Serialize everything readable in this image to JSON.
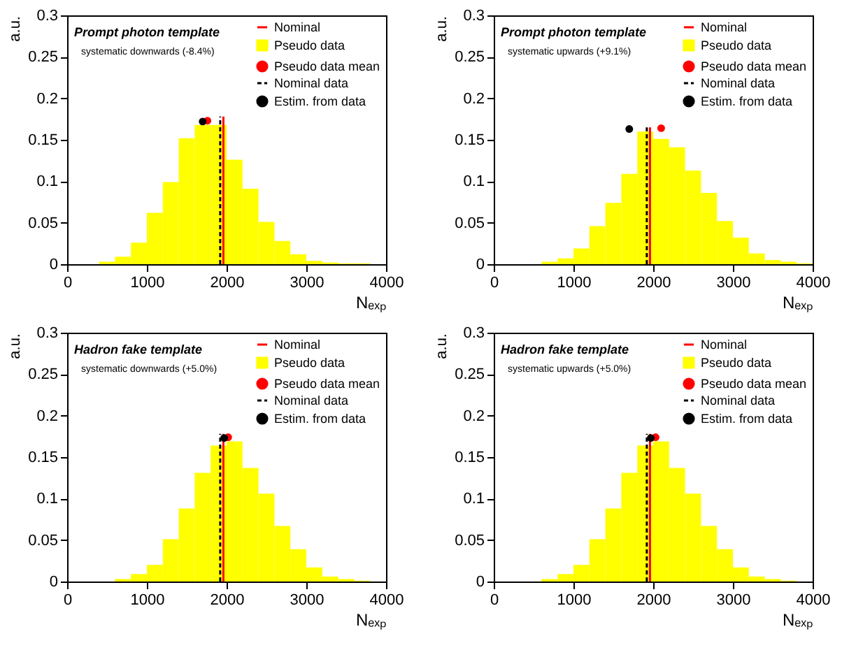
{
  "chart_data": [
    {
      "type": "histogram",
      "xlabel": "Nₑₓₚ",
      "ylabel": "a.u.",
      "xlim": [
        0,
        4000
      ],
      "ylim": [
        0,
        0.3
      ],
      "xticks": [
        0,
        1000,
        2000,
        3000,
        4000
      ],
      "yticks": [
        0,
        0.05,
        0.1,
        0.15,
        0.2,
        0.25,
        0.3
      ],
      "legend": "top right",
      "grid": false,
      "annotations": [
        "Prompt photon template",
        "systematic downwards (-8.4%)"
      ],
      "bins": [
        0,
        200,
        400,
        600,
        800,
        1000,
        1200,
        1400,
        1600,
        1800,
        2000,
        2200,
        2400,
        2600,
        2800,
        3000,
        3200,
        3400,
        3600,
        3800,
        4000
      ],
      "series": [
        {
          "name": "Nominal",
          "type": "line",
          "color": "#ff0000",
          "line_style": "solid",
          "x": [
            1960,
            1960
          ],
          "values": [
            0,
            0.178
          ]
        },
        {
          "name": "Pseudo data",
          "type": "histogram",
          "color": "#ffff00",
          "values": [
            0,
            0,
            0.003,
            0.009,
            0.026,
            0.062,
            0.099,
            0.152,
            0.168,
            0.168,
            0.126,
            0.091,
            0.051,
            0.028,
            0.012,
            0.004,
            0.002,
            0.001,
            0.001,
            0
          ]
        },
        {
          "name": "Pseudo data mean",
          "type": "scatter",
          "marker": "circle",
          "color": "#ff0000",
          "x": [
            1760
          ],
          "values": [
            0.173
          ]
        },
        {
          "name": "Nominal data",
          "type": "line",
          "color": "#000000",
          "line_style": "dashed",
          "x": [
            1920,
            1920
          ],
          "values": [
            0,
            0.178
          ]
        },
        {
          "name": "Estim. from data",
          "type": "scatter",
          "marker": "circle",
          "color": "#000000",
          "x": [
            1700
          ],
          "values": [
            0.172
          ]
        }
      ]
    },
    {
      "type": "histogram",
      "xlabel": "Nₑₓₚ",
      "ylabel": "a.u.",
      "xlim": [
        0,
        4000
      ],
      "ylim": [
        0,
        0.3
      ],
      "xticks": [
        0,
        1000,
        2000,
        3000,
        4000
      ],
      "yticks": [
        0,
        0.05,
        0.1,
        0.15,
        0.2,
        0.25,
        0.3
      ],
      "legend": "top right",
      "grid": false,
      "annotations": [
        "Prompt photon template",
        "systematic upwards (+9.1%)"
      ],
      "bins": [
        0,
        200,
        400,
        600,
        800,
        1000,
        1200,
        1400,
        1600,
        1800,
        2000,
        2200,
        2400,
        2600,
        2800,
        3000,
        3200,
        3400,
        3600,
        3800,
        4000
      ],
      "series": [
        {
          "name": "Nominal",
          "type": "line",
          "color": "#ff0000",
          "line_style": "solid",
          "x": [
            1960,
            1960
          ],
          "values": [
            0,
            0.165
          ]
        },
        {
          "name": "Pseudo data",
          "type": "histogram",
          "color": "#ffff00",
          "values": [
            0,
            0,
            0,
            0.003,
            0.007,
            0.019,
            0.046,
            0.074,
            0.109,
            0.16,
            0.151,
            0.141,
            0.113,
            0.086,
            0.052,
            0.032,
            0.013,
            0.005,
            0.003,
            0.001
          ]
        },
        {
          "name": "Pseudo data mean",
          "type": "scatter",
          "marker": "circle",
          "color": "#ff0000",
          "x": [
            2100
          ],
          "values": [
            0.164
          ]
        },
        {
          "name": "Nominal data",
          "type": "line",
          "color": "#000000",
          "line_style": "dashed",
          "x": [
            1920,
            1920
          ],
          "values": [
            0,
            0.165
          ]
        },
        {
          "name": "Estim. from data",
          "type": "scatter",
          "marker": "circle",
          "color": "#000000",
          "x": [
            1700
          ],
          "values": [
            0.163
          ]
        }
      ]
    },
    {
      "type": "histogram",
      "xlabel": "Nₑₓₚ",
      "ylabel": "a.u.",
      "xlim": [
        0,
        4000
      ],
      "ylim": [
        0,
        0.3
      ],
      "xticks": [
        0,
        1000,
        2000,
        3000,
        4000
      ],
      "yticks": [
        0,
        0.05,
        0.1,
        0.15,
        0.2,
        0.25,
        0.3
      ],
      "legend": "top right",
      "grid": false,
      "annotations": [
        "Hadron fake template",
        "systematic downwards (+5.0%)"
      ],
      "bins": [
        0,
        200,
        400,
        600,
        800,
        1000,
        1200,
        1400,
        1600,
        1800,
        2000,
        2200,
        2400,
        2600,
        2800,
        3000,
        3200,
        3400,
        3600,
        3800,
        4000
      ],
      "series": [
        {
          "name": "Nominal",
          "type": "line",
          "color": "#ff0000",
          "line_style": "solid",
          "x": [
            1960,
            1960
          ],
          "values": [
            0,
            0.178
          ]
        },
        {
          "name": "Pseudo data",
          "type": "histogram",
          "color": "#ffff00",
          "values": [
            0,
            0,
            0,
            0.003,
            0.009,
            0.02,
            0.051,
            0.088,
            0.131,
            0.164,
            0.169,
            0.137,
            0.106,
            0.067,
            0.039,
            0.017,
            0.006,
            0.003,
            0.001,
            0
          ]
        },
        {
          "name": "Pseudo data mean",
          "type": "scatter",
          "marker": "circle",
          "color": "#ff0000",
          "x": [
            2020
          ],
          "values": [
            0.174
          ]
        },
        {
          "name": "Nominal data",
          "type": "line",
          "color": "#000000",
          "line_style": "dashed",
          "x": [
            1920,
            1920
          ],
          "values": [
            0,
            0.178
          ]
        },
        {
          "name": "Estim. from data",
          "type": "scatter",
          "marker": "circle",
          "color": "#000000",
          "x": [
            1970
          ],
          "values": [
            0.173
          ]
        }
      ]
    },
    {
      "type": "histogram",
      "xlabel": "Nₑₓₚ",
      "ylabel": "a.u.",
      "xlim": [
        0,
        4000
      ],
      "ylim": [
        0,
        0.3
      ],
      "xticks": [
        0,
        1000,
        2000,
        3000,
        4000
      ],
      "yticks": [
        0,
        0.05,
        0.1,
        0.15,
        0.2,
        0.25,
        0.3
      ],
      "legend": "top right",
      "grid": false,
      "annotations": [
        "Hadron fake template",
        "systematic upwards (+5.0%)"
      ],
      "bins": [
        0,
        200,
        400,
        600,
        800,
        1000,
        1200,
        1400,
        1600,
        1800,
        2000,
        2200,
        2400,
        2600,
        2800,
        3000,
        3200,
        3400,
        3600,
        3800,
        4000
      ],
      "series": [
        {
          "name": "Nominal",
          "type": "line",
          "color": "#ff0000",
          "line_style": "solid",
          "x": [
            1960,
            1960
          ],
          "values": [
            0,
            0.178
          ]
        },
        {
          "name": "Pseudo data",
          "type": "histogram",
          "color": "#ffff00",
          "values": [
            0,
            0,
            0,
            0.003,
            0.009,
            0.02,
            0.051,
            0.088,
            0.131,
            0.164,
            0.169,
            0.137,
            0.106,
            0.067,
            0.039,
            0.017,
            0.006,
            0.003,
            0.001,
            0
          ]
        },
        {
          "name": "Pseudo data mean",
          "type": "scatter",
          "marker": "circle",
          "color": "#ff0000",
          "x": [
            2030
          ],
          "values": [
            0.174
          ]
        },
        {
          "name": "Nominal data",
          "type": "line",
          "color": "#000000",
          "line_style": "dashed",
          "x": [
            1920,
            1920
          ],
          "values": [
            0,
            0.178
          ]
        },
        {
          "name": "Estim. from data",
          "type": "scatter",
          "marker": "circle",
          "color": "#000000",
          "x": [
            1970
          ],
          "values": [
            0.173
          ]
        }
      ]
    }
  ]
}
